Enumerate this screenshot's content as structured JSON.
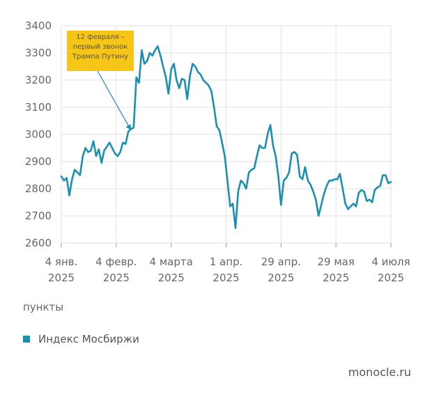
{
  "chart_data": {
    "type": "line",
    "ylim": [
      2600,
      3400
    ],
    "y_ticks": [
      "3400",
      "3300",
      "3200",
      "3100",
      "3000",
      "2900",
      "2800",
      "2700",
      "2600"
    ],
    "x_ticks": [
      {
        "day": "4 янв.",
        "year": "2025"
      },
      {
        "day": "4 февр.",
        "year": "2025"
      },
      {
        "day": "4 марта",
        "year": "2025"
      },
      {
        "day": "1 апр.",
        "year": "2025"
      },
      {
        "day": "29 апр.",
        "year": "2025"
      },
      {
        "day": "29 мая",
        "year": "2025"
      },
      {
        "day": "4 июля",
        "year": "2025"
      }
    ],
    "ylabel": "пункты",
    "grid": true,
    "annotation": {
      "lines": [
        "12 февраля –",
        "первый звонок",
        "Трампа Путину"
      ],
      "color": "#f5c518",
      "target_value": 3020
    },
    "series": [
      {
        "name": "Индекс Мосбиржи",
        "color": "#1a8fb0",
        "values": [
          2845,
          2830,
          2840,
          2775,
          2835,
          2870,
          2860,
          2850,
          2920,
          2950,
          2935,
          2940,
          2975,
          2920,
          2945,
          2895,
          2940,
          2955,
          2970,
          2950,
          2930,
          2920,
          2935,
          2970,
          2965,
          3010,
          3020,
          3025,
          3210,
          3190,
          3310,
          3260,
          3270,
          3300,
          3290,
          3310,
          3325,
          3290,
          3250,
          3210,
          3150,
          3240,
          3260,
          3200,
          3170,
          3205,
          3200,
          3130,
          3215,
          3260,
          3250,
          3230,
          3220,
          3200,
          3190,
          3180,
          3160,
          3100,
          3030,
          3015,
          2970,
          2920,
          2830,
          2735,
          2745,
          2655,
          2790,
          2830,
          2820,
          2800,
          2860,
          2870,
          2875,
          2920,
          2960,
          2950,
          2950,
          3000,
          3035,
          2960,
          2920,
          2845,
          2740,
          2830,
          2840,
          2860,
          2930,
          2935,
          2925,
          2845,
          2835,
          2880,
          2830,
          2815,
          2790,
          2760,
          2700,
          2740,
          2780,
          2810,
          2830,
          2830,
          2835,
          2835,
          2855,
          2800,
          2745,
          2725,
          2735,
          2745,
          2735,
          2785,
          2795,
          2790,
          2755,
          2760,
          2750,
          2795,
          2805,
          2810,
          2850,
          2850,
          2820,
          2825
        ]
      }
    ]
  },
  "source": "monocle.ru"
}
